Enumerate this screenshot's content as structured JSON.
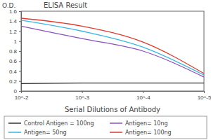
{
  "chart_data": {
    "type": "line",
    "title": "ELISA Result",
    "y_label": "O.D.",
    "x_label": "Serial Dilutions of Antibody",
    "x": [
      0.01,
      0.001,
      0.0001,
      1e-05
    ],
    "series": [
      {
        "name": "Control Antigen = 100ng",
        "color": "#333333",
        "values": [
          0.15,
          0.16,
          0.16,
          0.16
        ]
      },
      {
        "name": "Antigen= 10ng",
        "color": "#8a4fc0",
        "values": [
          1.3,
          1.05,
          0.8,
          0.28
        ]
      },
      {
        "name": "Antigen= 50ng",
        "color": "#35b6e6",
        "values": [
          1.42,
          1.2,
          0.88,
          0.32
        ]
      },
      {
        "name": "Antigen= 100ng",
        "color": "#e0392b",
        "values": [
          1.46,
          1.3,
          0.98,
          0.35
        ]
      }
    ],
    "xlim": [
      0.01,
      1e-05
    ],
    "xticks": [
      {
        "value": 0.01,
        "label": "10^-2"
      },
      {
        "value": 0.001,
        "label": "10^-3"
      },
      {
        "value": 0.0001,
        "label": "10^-4"
      },
      {
        "value": 1e-05,
        "label": "10^-5"
      }
    ],
    "ylim": [
      0,
      1.6
    ],
    "yticks": [
      0,
      0.2,
      0.4,
      0.6,
      0.8,
      1,
      1.2,
      1.4,
      1.6
    ],
    "log": "x",
    "grid": false,
    "legend": "bottom"
  }
}
